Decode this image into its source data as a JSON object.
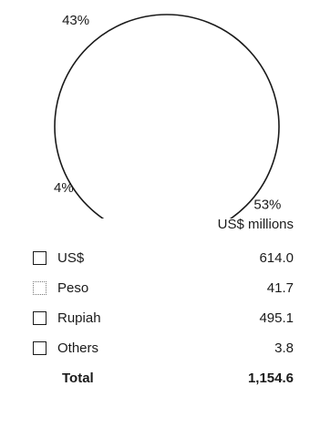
{
  "chart_data": {
    "type": "pie",
    "unit_label": "US$ millions",
    "categories": [
      "US$",
      "Peso",
      "Rupiah",
      "Others"
    ],
    "values": [
      614.0,
      41.7,
      495.1,
      3.8
    ],
    "value_labels": [
      "614.0",
      "41.7",
      "495.1",
      "3.8"
    ],
    "slice_labels": [
      "53%",
      "4%",
      "43%",
      ""
    ],
    "total_label": "Total",
    "total_value": "1,154.6",
    "legend_placement": "bottom"
  },
  "colors": {
    "outline": "#1a1a1a",
    "fill": "#ffffff"
  }
}
